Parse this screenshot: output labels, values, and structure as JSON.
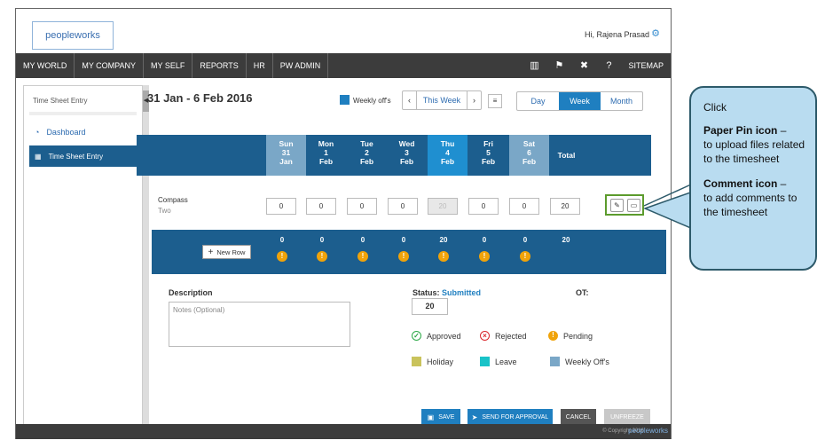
{
  "header": {
    "logo": "peopleworks",
    "greeting": "Hi, Rajena Prasad"
  },
  "nav": {
    "items": [
      "MY WORLD",
      "MY COMPANY",
      "MY SELF",
      "REPORTS",
      "HR",
      "PW ADMIN"
    ],
    "sitemap": "SITEMAP"
  },
  "sidebar": {
    "title": "Time Sheet Entry",
    "dashboard": "Dashboard",
    "active": "Time Sheet Entry"
  },
  "timesheet": {
    "date_range": "31 Jan - 6 Feb 2016",
    "weekly_offs_label": "Weekly off's",
    "this_week": "This Week",
    "views": [
      "Day",
      "Week",
      "Month"
    ],
    "days": [
      {
        "d": "Sun",
        "n": "31",
        "m": "Jan"
      },
      {
        "d": "Mon",
        "n": "1",
        "m": "Feb"
      },
      {
        "d": "Tue",
        "n": "2",
        "m": "Feb"
      },
      {
        "d": "Wed",
        "n": "3",
        "m": "Feb"
      },
      {
        "d": "Thu",
        "n": "4",
        "m": "Feb"
      },
      {
        "d": "Fri",
        "n": "5",
        "m": "Feb"
      },
      {
        "d": "Sat",
        "n": "6",
        "m": "Feb"
      }
    ],
    "total_label": "Total",
    "row": {
      "project": "Compass",
      "task": "Two",
      "values": [
        "0",
        "0",
        "0",
        "0",
        "20",
        "0",
        "0"
      ],
      "total": "20"
    },
    "new_row": "New Row",
    "totals": [
      "0",
      "0",
      "0",
      "0",
      "20",
      "0",
      "0",
      "20"
    ]
  },
  "details": {
    "description_label": "Description",
    "notes_placeholder": "Notes (Optional)",
    "status_label": "Status:",
    "status_value": "Submitted",
    "ot_label": "OT:",
    "status_box": "20",
    "legend": [
      "Approved",
      "Rejected",
      "Pending",
      "Holiday",
      "Leave",
      "Weekly Off's"
    ]
  },
  "buttons": {
    "save": "SAVE",
    "send": "SEND FOR APPROVAL",
    "cancel": "CANCEL",
    "unfreeze": "UNFREEZE"
  },
  "footer": {
    "copyright": "© Copyright 2016",
    "logo": "peopleworks"
  },
  "callout": {
    "click": "Click",
    "pin_title": "Paper Pin icon",
    "pin_desc": "to upload files related to the timesheet",
    "comment_title": "Comment icon",
    "comment_desc": "to add comments to the timesheet"
  },
  "colors": {
    "nav": "#3c3c3c",
    "primary": "#1c5e8e",
    "accent": "#1f7fc0",
    "weekend": "#7aa7c7",
    "today": "#1f8fd0"
  }
}
